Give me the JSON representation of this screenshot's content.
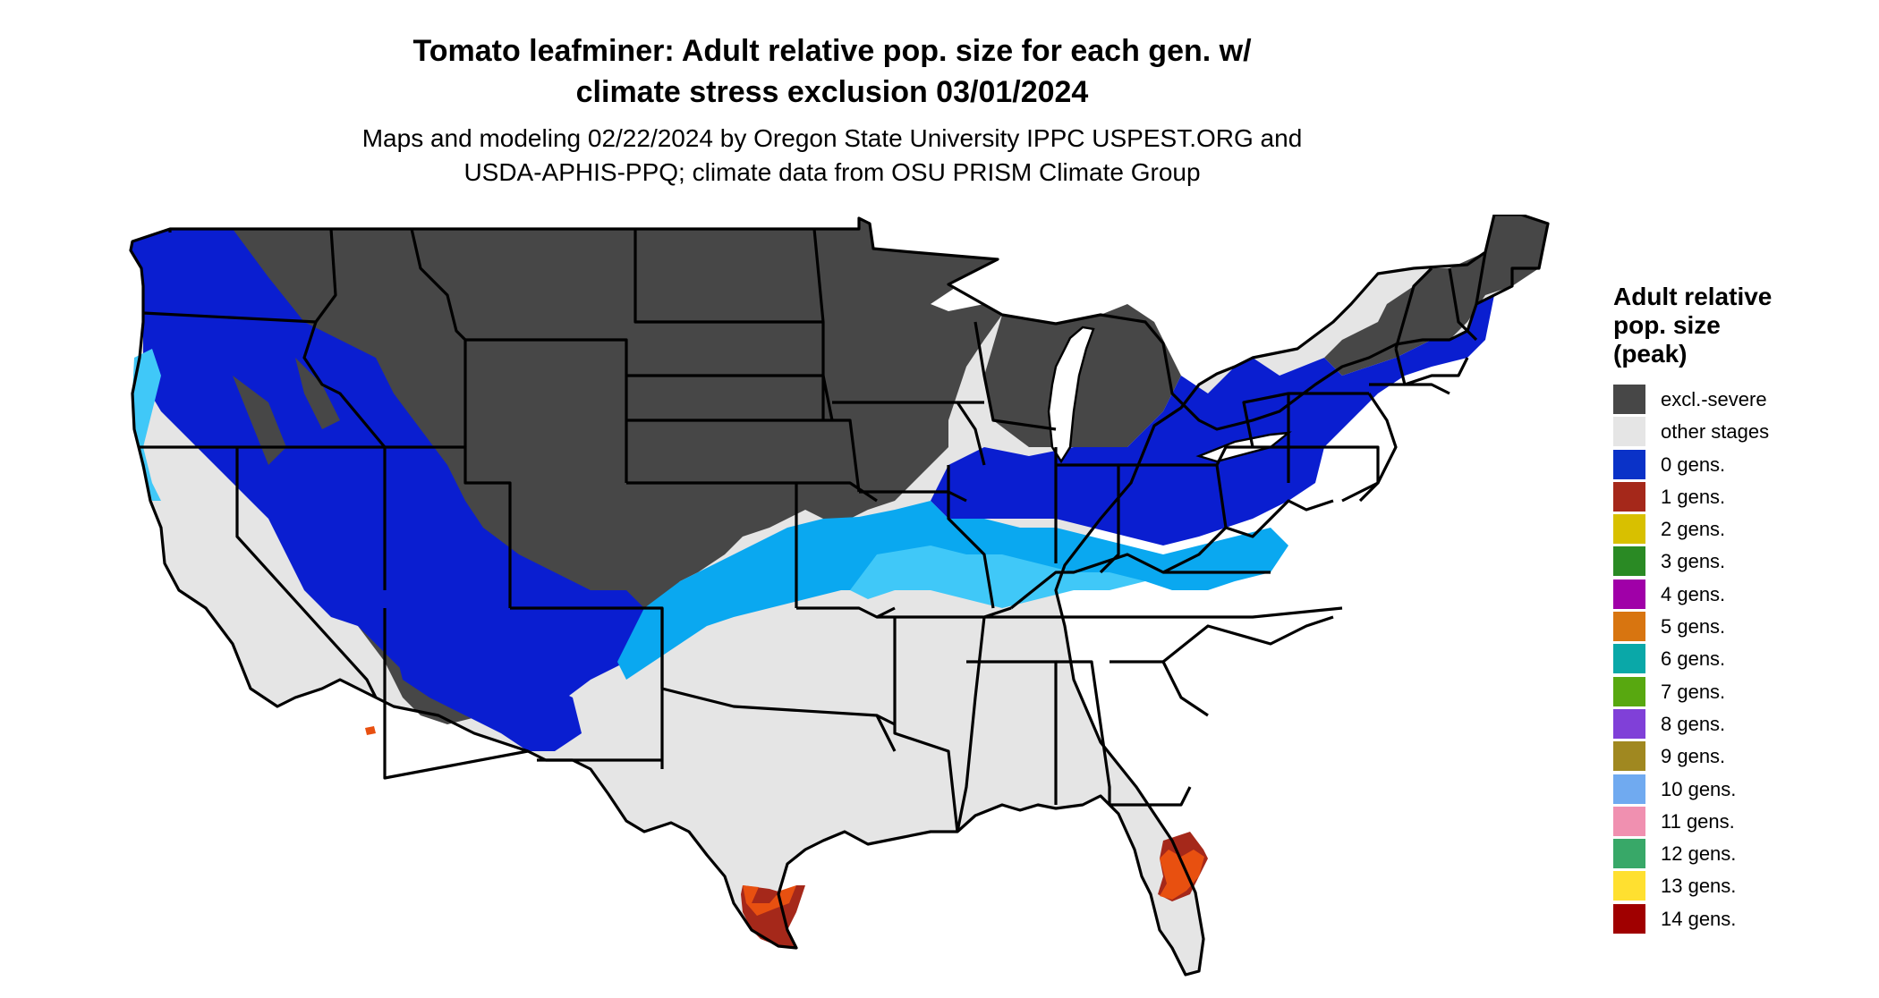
{
  "title": {
    "line1": "Tomato leafminer: Adult relative pop. size for each gen. w/",
    "line2": "climate stress exclusion 03/01/2024"
  },
  "subtitle": {
    "line1": "Maps and modeling 02/22/2024 by Oregon State University IPPC USPEST.ORG and",
    "line2": "USDA-APHIS-PPQ; climate data from OSU PRISM Climate Group"
  },
  "legend": {
    "title_lines": [
      "Adult relative",
      "pop. size",
      "(peak)"
    ],
    "items": [
      {
        "label": "excl.-severe",
        "color": "#474747"
      },
      {
        "label": "other stages",
        "color": "#e5e5e5"
      },
      {
        "label": "0 gens.",
        "color": "#0a32c8"
      },
      {
        "label": "1 gens.",
        "color": "#a5281a"
      },
      {
        "label": "2 gens.",
        "color": "#d8c000"
      },
      {
        "label": "3 gens.",
        "color": "#2a8a24"
      },
      {
        "label": "4 gens.",
        "color": "#a000a8"
      },
      {
        "label": "5 gens.",
        "color": "#d87510"
      },
      {
        "label": "6 gens.",
        "color": "#0aa8a8"
      },
      {
        "label": "7 gens.",
        "color": "#58a810"
      },
      {
        "label": "8 gens.",
        "color": "#8040d8"
      },
      {
        "label": "9 gens.",
        "color": "#a08820"
      },
      {
        "label": "10 gens.",
        "color": "#70aaf0"
      },
      {
        "label": "11 gens.",
        "color": "#f090b0"
      },
      {
        "label": "12 gens.",
        "color": "#38a868"
      },
      {
        "label": "13 gens.",
        "color": "#ffe030"
      },
      {
        "label": "14 gens.",
        "color": "#a00000"
      }
    ]
  },
  "map_colors": {
    "excluded": "#474747",
    "other_stages": "#e5e5e5",
    "zero_gens_dark": "#0a1ed0",
    "zero_gens_light": "#0aa8f0",
    "zero_gens_pale": "#40c8f8",
    "one_gen_red": "#a5281a",
    "one_gen_orange": "#e85010"
  }
}
